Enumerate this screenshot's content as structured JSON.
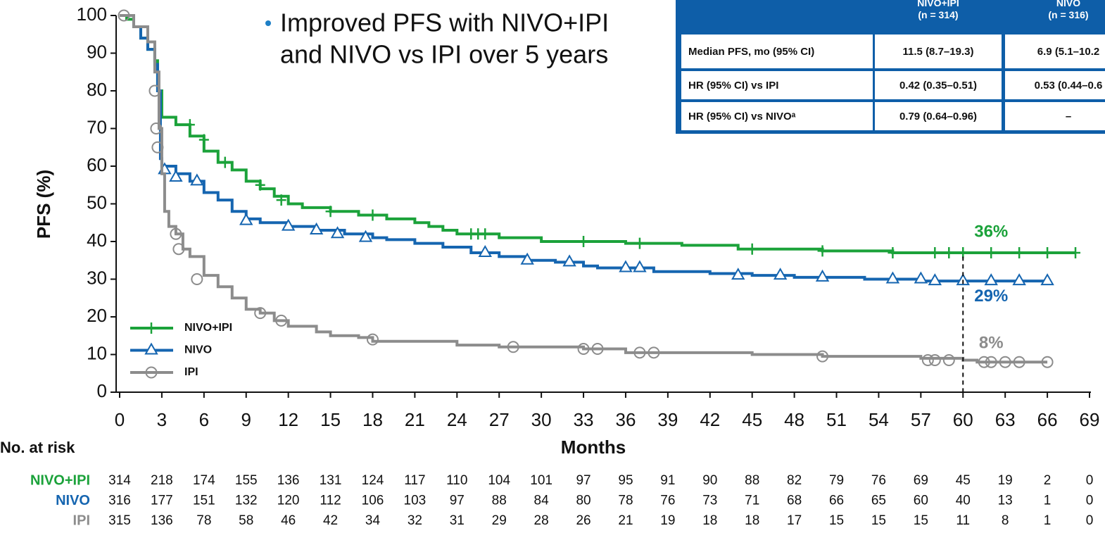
{
  "chart_data": {
    "type": "line",
    "step": true,
    "annotation": [
      "Improved PFS with NIVO+IPI",
      "and NIVO vs IPI over 5 years"
    ],
    "x_label": "Months",
    "y_label": "PFS (%)",
    "xlim": [
      0,
      69
    ],
    "xticks": [
      0,
      3,
      6,
      9,
      12,
      15,
      18,
      21,
      24,
      27,
      30,
      33,
      36,
      39,
      42,
      45,
      48,
      51,
      54,
      57,
      60,
      63,
      66,
      69
    ],
    "ylim": [
      0,
      100
    ],
    "yticks": [
      0,
      10,
      20,
      30,
      40,
      50,
      60,
      70,
      80,
      90,
      100
    ],
    "legend": "lower left",
    "series": [
      {
        "name": "NIVO+IPI",
        "color": "#1ba23a",
        "marker": "plus",
        "x": [
          0,
          0.5,
          1,
          1.5,
          2,
          2.5,
          2.7,
          3,
          4,
          5,
          6,
          7,
          8,
          9,
          10,
          11,
          12,
          13,
          15,
          17,
          19,
          21,
          22,
          23,
          24,
          27,
          30,
          36,
          40,
          44,
          50,
          55,
          68
        ],
        "values": [
          100,
          99,
          97,
          94,
          91,
          88,
          80,
          73,
          71,
          68,
          64,
          61,
          59,
          56,
          54,
          52,
          50,
          49,
          48,
          47,
          46,
          45,
          44,
          43,
          42,
          41,
          40,
          39.5,
          39,
          38,
          37.5,
          37,
          37
        ],
        "censor_x": [
          5,
          6,
          7.5,
          10,
          11.5,
          15,
          18,
          25,
          25.5,
          26,
          33,
          37,
          45,
          50,
          55,
          58,
          59,
          60,
          62,
          64,
          66,
          68
        ],
        "censor_y": [
          71,
          67,
          61,
          55,
          51,
          48,
          47,
          42,
          42,
          42,
          40,
          39.5,
          38,
          37.5,
          37,
          37,
          37,
          37,
          37,
          37,
          37,
          37
        ]
      },
      {
        "name": "NIVO",
        "color": "#1565b0",
        "marker": "triangle",
        "x": [
          0,
          1,
          1.5,
          2,
          2.5,
          2.7,
          2.9,
          3,
          4,
          5,
          6,
          7,
          8,
          9,
          10,
          12,
          14,
          16,
          18,
          19,
          21,
          23,
          25,
          27,
          29,
          31,
          33,
          34,
          38,
          42,
          45,
          48,
          53,
          57,
          66
        ],
        "values": [
          100,
          97,
          94,
          91,
          87,
          80,
          62,
          60,
          58,
          56,
          53,
          51,
          48,
          46,
          45,
          44,
          43,
          42,
          41,
          40.5,
          39.5,
          38.5,
          37,
          36,
          35,
          34.5,
          33.5,
          33,
          32,
          31.5,
          31,
          30.5,
          30,
          29.5,
          29.5
        ],
        "censor_x": [
          3.2,
          4,
          5.5,
          9,
          12,
          14,
          15.5,
          17.5,
          26,
          29,
          32,
          36,
          37,
          44,
          47,
          50,
          55,
          57,
          58,
          60,
          62,
          64,
          66
        ],
        "censor_y": [
          59,
          57,
          56,
          45.5,
          44,
          43,
          42,
          41,
          37,
          35,
          34.5,
          33,
          33,
          31,
          31,
          30.5,
          30,
          30,
          29.5,
          29.5,
          29.5,
          29.5,
          29.5
        ]
      },
      {
        "name": "IPI",
        "color": "#8c8c8c",
        "marker": "circle",
        "x": [
          0,
          1,
          2,
          2.5,
          2.8,
          3,
          3.2,
          3.5,
          4,
          4.5,
          5,
          6,
          7,
          8,
          9,
          10,
          11,
          12,
          14,
          15,
          17,
          18,
          24,
          27,
          33,
          36,
          45,
          50,
          57,
          60,
          61,
          66
        ],
        "values": [
          100,
          97,
          93,
          85,
          70,
          58,
          48,
          44,
          42,
          38,
          36,
          31,
          28,
          25,
          22,
          21,
          19,
          17.5,
          16,
          15,
          14.5,
          13.5,
          12.5,
          12,
          11.5,
          10.5,
          10,
          9.5,
          9,
          8.5,
          8,
          8
        ],
        "censor_x": [
          0.3,
          2.5,
          2.6,
          2.7,
          4,
          4.2,
          5.5,
          10,
          11.5,
          18,
          28,
          33,
          34,
          37,
          38,
          50,
          57.5,
          58,
          59,
          61.5,
          62,
          63,
          64,
          66
        ],
        "censor_y": [
          100,
          80,
          70,
          65,
          42,
          38,
          30,
          21,
          19,
          14,
          12,
          11.5,
          11.5,
          10.5,
          10.5,
          9.5,
          8.5,
          8.5,
          8.5,
          8,
          8,
          8,
          8,
          8
        ]
      }
    ],
    "landmark_x": 60,
    "landmark_values": [
      36,
      29,
      8
    ],
    "landmark_labels": [
      "36%",
      "29%",
      "8%"
    ],
    "risk_table": {
      "title": "No. at risk",
      "rows": [
        {
          "name": "NIVO+IPI",
          "color": "#1ba23a",
          "values": [
            314,
            218,
            174,
            155,
            136,
            131,
            124,
            117,
            110,
            104,
            101,
            97,
            95,
            91,
            90,
            88,
            82,
            79,
            76,
            69,
            45,
            19,
            2,
            0
          ]
        },
        {
          "name": "NIVO",
          "color": "#1565b0",
          "values": [
            316,
            177,
            151,
            132,
            120,
            112,
            106,
            103,
            97,
            88,
            84,
            80,
            78,
            76,
            73,
            71,
            68,
            66,
            65,
            60,
            40,
            13,
            1,
            0
          ]
        },
        {
          "name": "IPI",
          "color": "#8c8c8c",
          "values": [
            315,
            136,
            78,
            58,
            46,
            42,
            34,
            32,
            31,
            29,
            28,
            26,
            21,
            19,
            18,
            18,
            17,
            15,
            15,
            15,
            11,
            8,
            1,
            0
          ]
        }
      ]
    },
    "table": {
      "header": [
        [
          "NIVO+IPI",
          "(n = 314)"
        ],
        [
          "NIVO",
          "(n = 316)"
        ]
      ],
      "rows": [
        [
          "Median PFS, mo (95% CI)",
          "11.5 (8.7–19.3)",
          "6.9 (5.1–10.2"
        ],
        [
          "HR (95% CI) vs IPI",
          "0.42 (0.35–0.51)",
          "0.53 (0.44–0.6"
        ],
        [
          "HR (95% CI) vs NIVOᵃ",
          "0.79 (0.64–0.96)",
          "–"
        ]
      ]
    }
  }
}
